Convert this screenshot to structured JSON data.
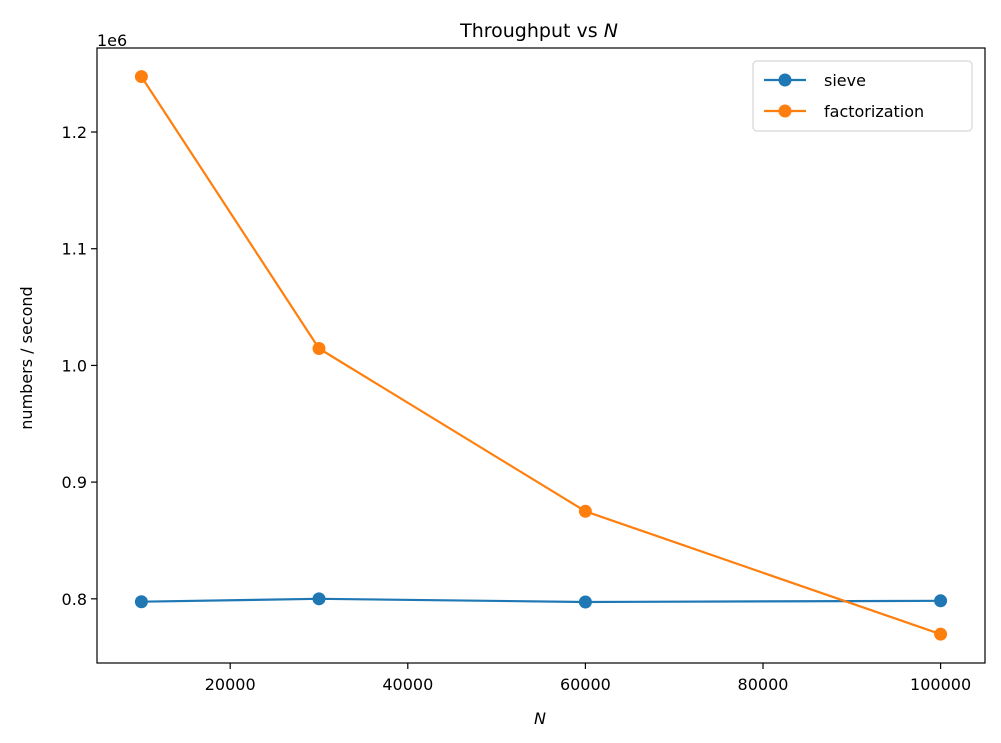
{
  "chart_data": {
    "type": "line",
    "title": "Throughput vs",
    "title_symbol": "N",
    "xlabel": "N",
    "ylabel": "numbers / second",
    "y_offset_label": "1e6",
    "xlim": [
      5000,
      105000
    ],
    "ylim": [
      745000,
      1272000
    ],
    "x_ticks": [
      20000,
      40000,
      60000,
      80000,
      100000
    ],
    "x_tick_labels": [
      "20000",
      "40000",
      "60000",
      "80000",
      "100000"
    ],
    "y_ticks": [
      800000,
      900000,
      1000000,
      1100000,
      1200000
    ],
    "y_tick_labels": [
      "0.8",
      "0.9",
      "1.0",
      "1.1",
      "1.2"
    ],
    "grid": false,
    "legend_position": "top-right",
    "x": [
      10000,
      30000,
      60000,
      100000
    ],
    "series": [
      {
        "name": "sieve",
        "color": "#1f77b4",
        "marker": "circle",
        "values": [
          797500,
          800000,
          797300,
          798300
        ]
      },
      {
        "name": "factorization",
        "color": "#ff7f0e",
        "marker": "circle",
        "values": [
          1247500,
          1014500,
          875000,
          769700
        ]
      }
    ]
  }
}
